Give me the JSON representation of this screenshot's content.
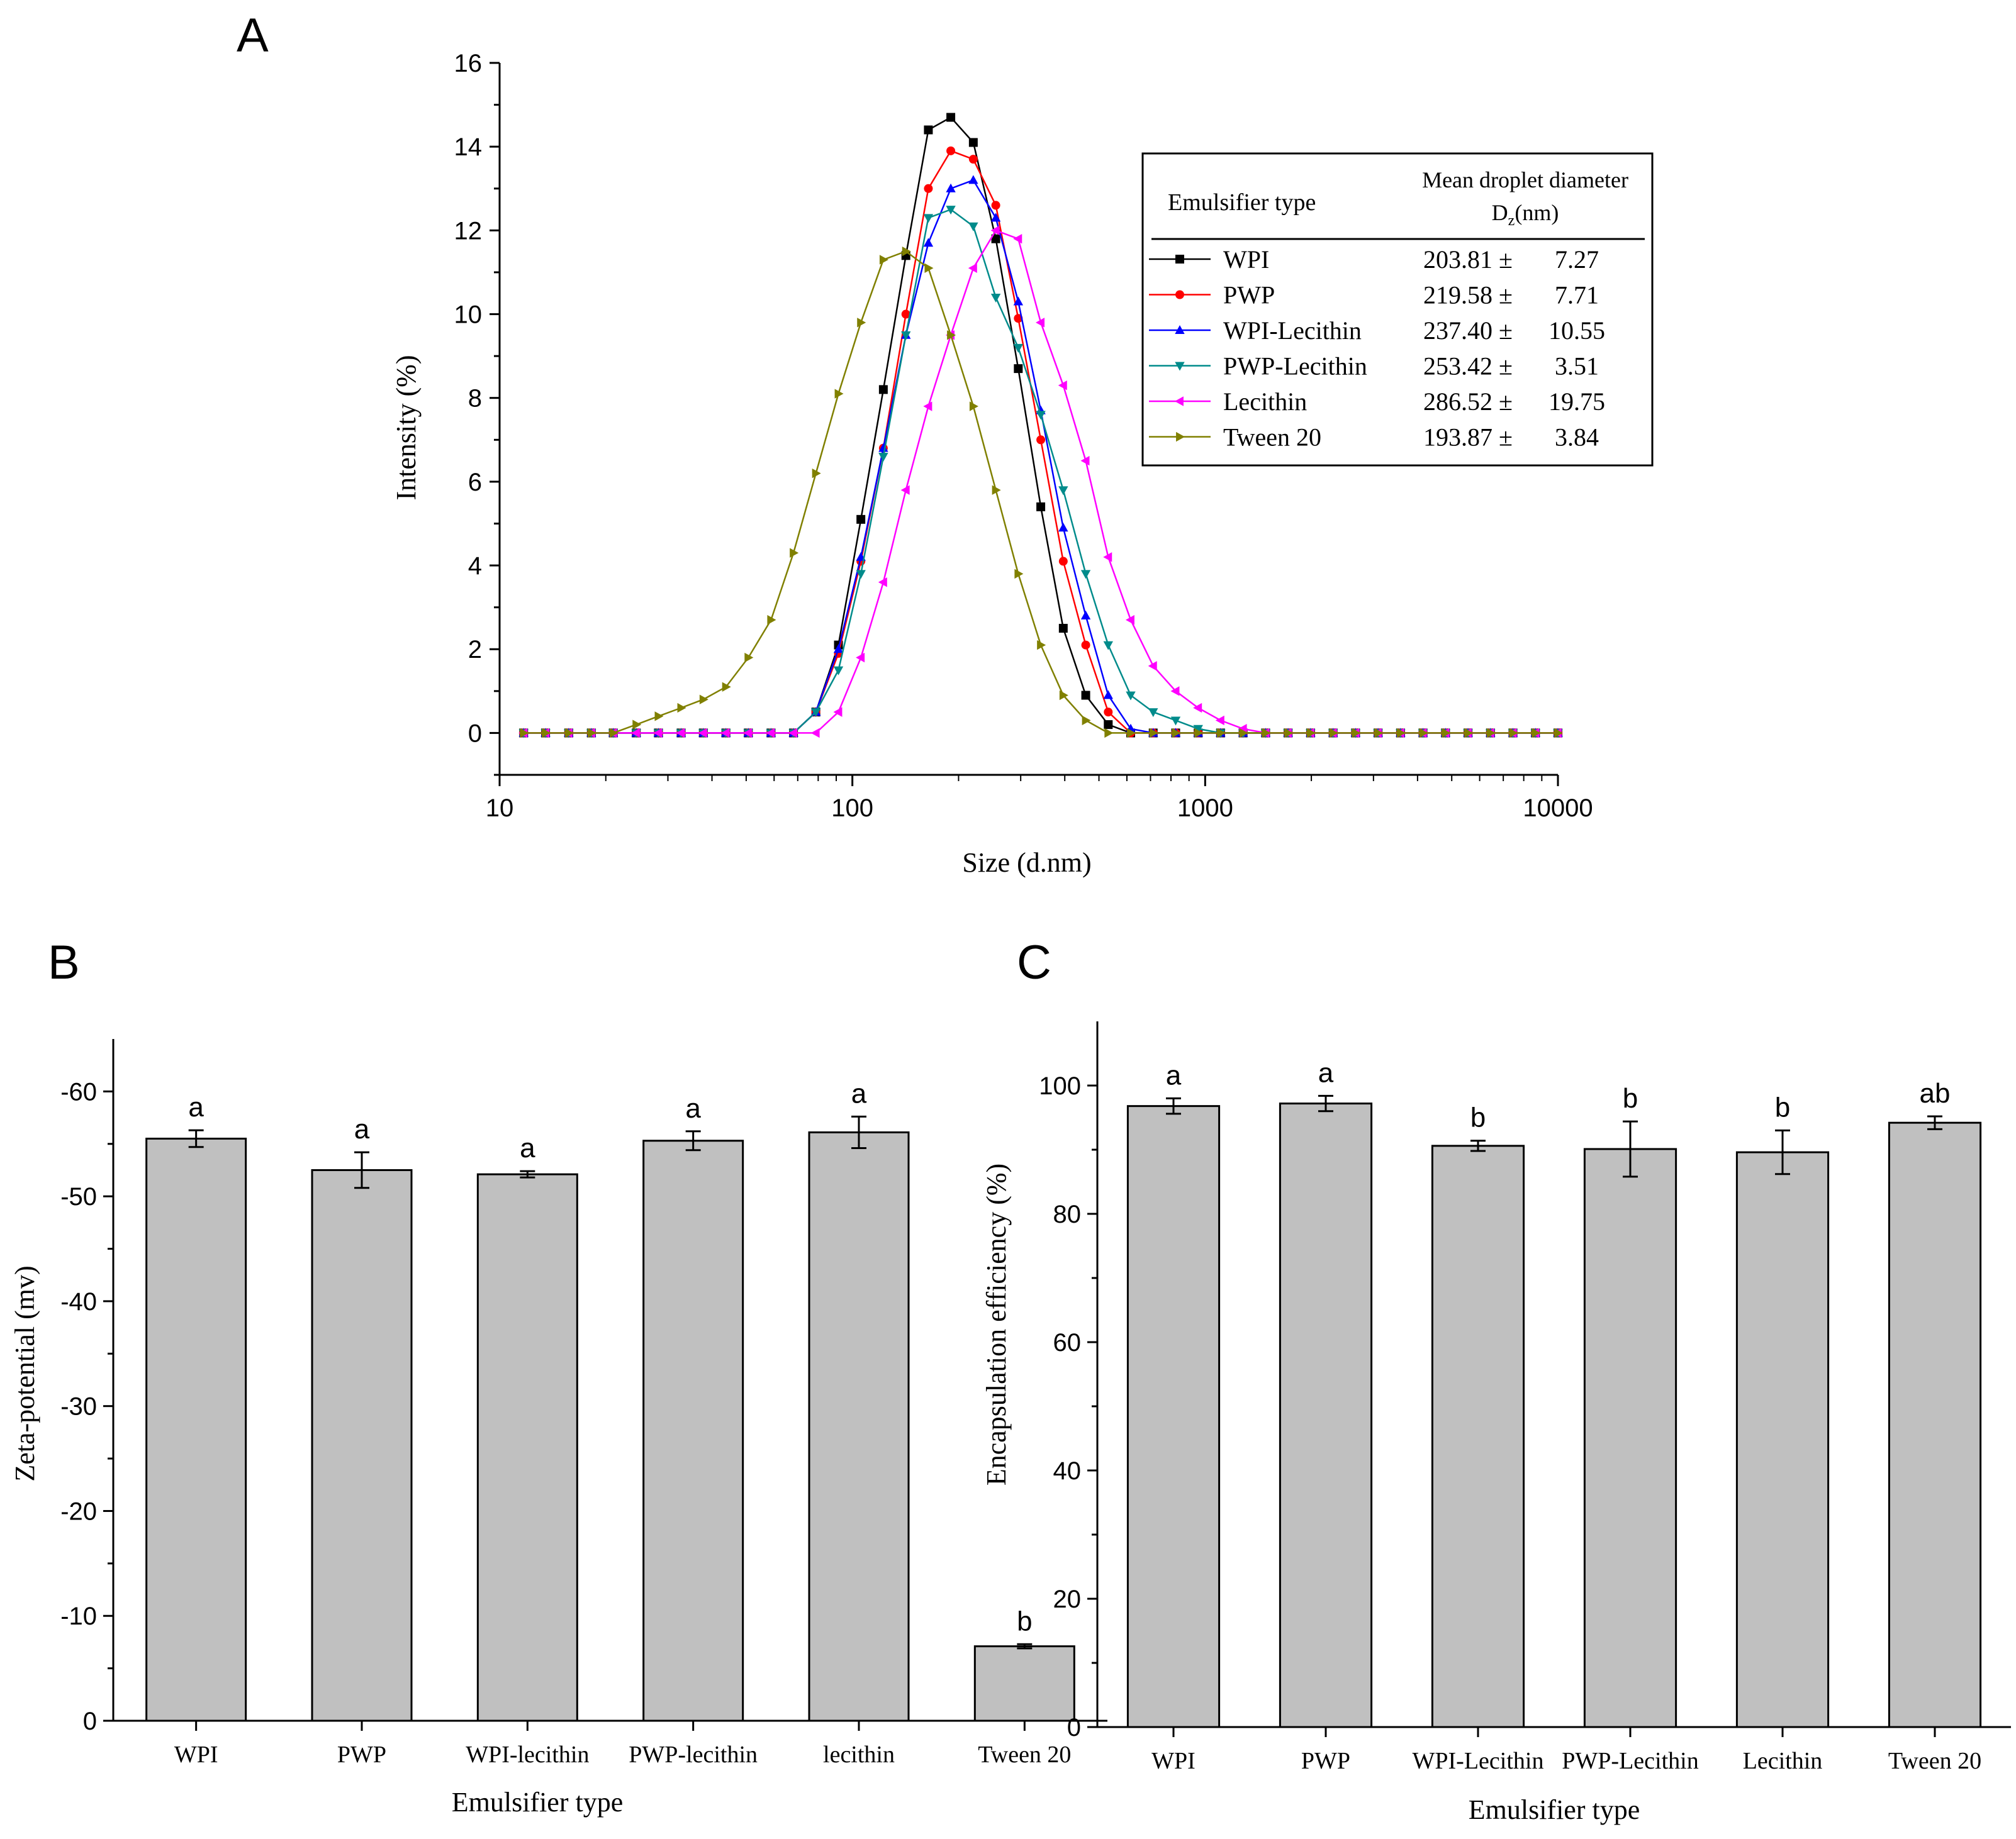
{
  "panels": {
    "a": "A",
    "b": "B",
    "c": "C"
  },
  "colors": {
    "axis": "#000000",
    "bar_fill": "#c0c0c0",
    "series": [
      "#000000",
      "#ff0000",
      "#0000ff",
      "#008b8b",
      "#ff00ff",
      "#808000"
    ]
  },
  "legend_a": {
    "col1_header": "Emulsifier type",
    "col2_header_line1": "Mean droplet diameter",
    "col2_header_line2_pre": "D",
    "col2_header_line2_sub": "z",
    "col2_header_line2_post": "(nm)",
    "rows": [
      {
        "name": "WPI",
        "mean": "203.81 ±",
        "sd": "7.27"
      },
      {
        "name": "PWP",
        "mean": "219.58 ±",
        "sd": "7.71"
      },
      {
        "name": "WPI-Lecithin",
        "mean": "237.40 ±",
        "sd": "10.55"
      },
      {
        "name": "PWP-Lecithin",
        "mean": "253.42 ±",
        "sd": "3.51"
      },
      {
        "name": "Lecithin",
        "mean": "286.52 ±",
        "sd": "19.75"
      },
      {
        "name": "Tween 20",
        "mean": "193.87 ±",
        "sd": "3.84"
      }
    ]
  },
  "chart_data": [
    {
      "panel": "A",
      "type": "line",
      "xscale": "log",
      "xlabel": "Size (d.nm)",
      "ylabel": "Intensity (%)",
      "xlim": [
        10,
        10000
      ],
      "ylim": [
        -1,
        16
      ],
      "xticks": [
        "10",
        "100",
        "1000",
        "10000"
      ],
      "yticks": [
        "0",
        "2",
        "4",
        "6",
        "8",
        "10",
        "12",
        "14",
        "16"
      ],
      "x": [
        11.7,
        13.5,
        15.7,
        18.2,
        21.0,
        24.4,
        28.2,
        32.7,
        37.8,
        43.8,
        50.7,
        58.8,
        68.1,
        78.8,
        91.3,
        105.7,
        122.4,
        141.8,
        164.2,
        190.1,
        220.2,
        255.0,
        295.3,
        342.0,
        396.1,
        458.7,
        531.2,
        615.1,
        712.4,
        825.0,
        955.4,
        1106,
        1281,
        1484,
        1718,
        1990,
        2305,
        2669,
        3091,
        3580,
        4145,
        4801,
        5560,
        6439,
        7456,
        8635,
        10000
      ],
      "series": [
        {
          "name": "WPI",
          "marker": "square",
          "values": [
            0,
            0,
            0,
            0,
            0,
            0,
            0,
            0,
            0,
            0,
            0,
            0,
            0,
            0.5,
            2.1,
            5.1,
            8.2,
            11.4,
            14.4,
            14.7,
            14.1,
            11.8,
            8.7,
            5.4,
            2.5,
            0.9,
            0.2,
            0,
            0,
            0,
            0,
            0,
            0,
            0,
            0,
            0,
            0,
            0,
            0,
            0,
            0,
            0,
            0,
            0,
            0,
            0,
            0
          ]
        },
        {
          "name": "PWP",
          "marker": "circle",
          "values": [
            0,
            0,
            0,
            0,
            0,
            0,
            0,
            0,
            0,
            0,
            0,
            0,
            0,
            0.5,
            1.9,
            4.1,
            6.8,
            10.0,
            13.0,
            13.9,
            13.7,
            12.6,
            9.9,
            7.0,
            4.1,
            2.1,
            0.5,
            0,
            0,
            0,
            0,
            0,
            0,
            0,
            0,
            0,
            0,
            0,
            0,
            0,
            0,
            0,
            0,
            0,
            0,
            0,
            0
          ]
        },
        {
          "name": "WPI-Lecithin",
          "marker": "triangle-up",
          "values": [
            0,
            0,
            0,
            0,
            0,
            0,
            0,
            0,
            0,
            0,
            0,
            0,
            0,
            0.5,
            2.0,
            4.2,
            6.8,
            9.5,
            11.7,
            13.0,
            13.2,
            12.3,
            10.3,
            7.7,
            4.9,
            2.8,
            0.9,
            0.1,
            0,
            0,
            0,
            0,
            0,
            0,
            0,
            0,
            0,
            0,
            0,
            0,
            0,
            0,
            0,
            0,
            0,
            0,
            0
          ]
        },
        {
          "name": "PWP-Lecithin",
          "marker": "triangle-down",
          "values": [
            0,
            0,
            0,
            0,
            0,
            0,
            0,
            0,
            0,
            0,
            0,
            0,
            0,
            0.5,
            1.5,
            3.8,
            6.6,
            9.5,
            12.3,
            12.5,
            12.1,
            10.4,
            9.2,
            7.6,
            5.8,
            3.8,
            2.1,
            0.9,
            0.5,
            0.3,
            0.1,
            0,
            0,
            0,
            0,
            0,
            0,
            0,
            0,
            0,
            0,
            0,
            0,
            0,
            0,
            0,
            0
          ]
        },
        {
          "name": "Lecithin",
          "marker": "triangle-left",
          "values": [
            0,
            0,
            0,
            0,
            0,
            0,
            0,
            0,
            0,
            0,
            0,
            0,
            0,
            0,
            0.5,
            1.8,
            3.6,
            5.8,
            7.8,
            9.5,
            11.1,
            12.0,
            11.8,
            9.8,
            8.3,
            6.5,
            4.2,
            2.7,
            1.6,
            1.0,
            0.6,
            0.3,
            0.1,
            0,
            0,
            0,
            0,
            0,
            0,
            0,
            0,
            0,
            0,
            0,
            0,
            0,
            0
          ]
        },
        {
          "name": "Tween 20",
          "marker": "triangle-right",
          "values": [
            0,
            0,
            0,
            0,
            0,
            0.2,
            0.4,
            0.6,
            0.8,
            1.1,
            1.8,
            2.7,
            4.3,
            6.2,
            8.1,
            9.8,
            11.3,
            11.5,
            11.1,
            9.5,
            7.8,
            5.8,
            3.8,
            2.1,
            0.9,
            0.3,
            0,
            0,
            0,
            0,
            0,
            0,
            0,
            0,
            0,
            0,
            0,
            0,
            0,
            0,
            0,
            0,
            0,
            0,
            0,
            0,
            0
          ]
        }
      ]
    },
    {
      "panel": "B",
      "type": "bar",
      "xlabel": "Emulsifier type",
      "ylabel": "Zeta-potential (mv)",
      "categories": [
        "WPI",
        "PWP",
        "WPI-lecithin",
        "PWP-lecithin",
        "lecithin",
        "Tween 20"
      ],
      "values": [
        -55.5,
        -52.5,
        -52.1,
        -55.3,
        -56.1,
        -7.1
      ],
      "errors": [
        0.8,
        1.7,
        0.3,
        0.9,
        1.5,
        0.2
      ],
      "letters": [
        "a",
        "a",
        "a",
        "a",
        "a",
        "b"
      ],
      "ylim": [
        0,
        -65
      ],
      "yticks": [
        "0",
        "-10",
        "-20",
        "-30",
        "-40",
        "-50",
        "-60"
      ]
    },
    {
      "panel": "C",
      "type": "bar",
      "xlabel": "Emulsifier type",
      "ylabel": "Encapsulation efficiency (%)",
      "categories": [
        "WPI",
        "PWP",
        "WPI-Lecithin",
        "PWP-Lecithin",
        "Lecithin",
        "Tween 20"
      ],
      "values": [
        96.8,
        97.2,
        90.6,
        90.1,
        89.6,
        94.2
      ],
      "errors": [
        1.2,
        1.2,
        0.8,
        4.3,
        3.4,
        1.0
      ],
      "letters": [
        "a",
        "a",
        "b",
        "b",
        "b",
        "ab"
      ],
      "ylim": [
        0,
        110
      ],
      "yticks": [
        "0",
        "20",
        "40",
        "60",
        "80",
        "100"
      ]
    }
  ]
}
